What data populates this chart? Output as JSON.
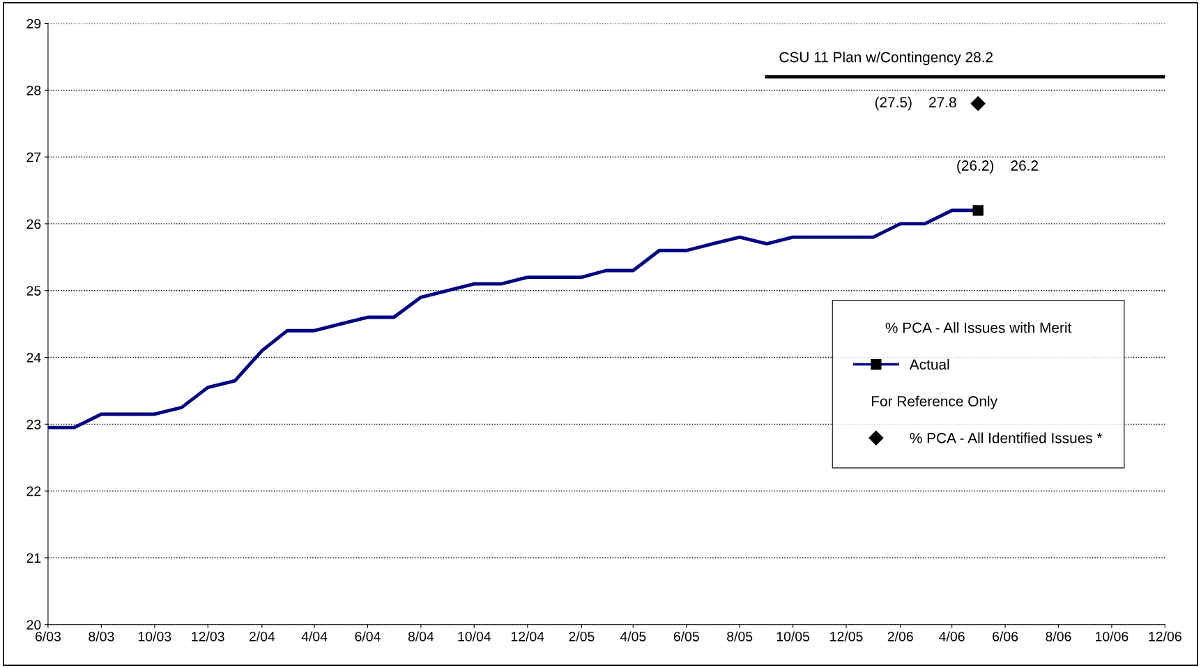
{
  "chart_data": {
    "type": "line",
    "x": [
      "2003-06",
      "2003-07",
      "2003-08",
      "2003-09",
      "2003-10",
      "2003-11",
      "2003-12",
      "2004-01",
      "2004-02",
      "2004-03",
      "2004-04",
      "2004-05",
      "2004-06",
      "2004-07",
      "2004-08",
      "2004-09",
      "2004-10",
      "2004-11",
      "2004-12",
      "2005-01",
      "2005-02",
      "2005-03",
      "2005-04",
      "2005-05",
      "2005-06",
      "2005-07",
      "2005-08",
      "2005-09",
      "2005-10",
      "2005-11",
      "2005-12",
      "2006-01",
      "2006-02",
      "2006-03",
      "2006-04",
      "2006-05"
    ],
    "series": [
      {
        "name": "Actual",
        "color": "#000080",
        "marker": "none",
        "values": [
          22.95,
          22.95,
          23.15,
          23.15,
          23.15,
          23.25,
          23.55,
          23.65,
          24.1,
          24.4,
          24.4,
          24.5,
          24.6,
          24.6,
          24.9,
          25.0,
          25.1,
          25.1,
          25.2,
          25.2,
          25.2,
          25.3,
          25.3,
          25.6,
          25.6,
          25.7,
          25.8,
          25.7,
          25.8,
          25.8,
          25.8,
          25.8,
          26.0,
          26.0,
          26.2,
          26.2
        ]
      },
      {
        "name": "% PCA - All Identified Issues *",
        "type": "scatter",
        "color": "#000000",
        "marker": "diamond",
        "x": [
          "2006-05"
        ],
        "values": [
          27.8
        ]
      },
      {
        "type": "scatter",
        "color": "#000000",
        "marker": "square",
        "x": [
          "2006-05"
        ],
        "values": [
          26.2
        ]
      },
      {
        "type": "line",
        "color": "#000000",
        "marker": "none",
        "x": [
          "2005-09",
          "2006-12"
        ],
        "values": [
          28.2,
          28.2
        ]
      }
    ],
    "legend_title": "% PCA - All Issues with Merit",
    "annotations": [
      {
        "text": "CSU 11 Plan w/Contingency 28.2",
        "x": "2006-03",
        "y": 28.2
      },
      {
        "text": "(27.5)    27.8",
        "x": "2006-05",
        "y": 27.8
      },
      {
        "text": "(26.2)    26.2",
        "x": "2006-05",
        "y": 26.2
      },
      "For Reference Only"
    ],
    "xlim": [
      "2003-06",
      "2006-12"
    ],
    "xticks": [
      {
        "value": "2003-06",
        "label": "6/03"
      },
      {
        "value": "2003-08",
        "label": "8/03"
      },
      {
        "value": "2003-10",
        "label": "10/03"
      },
      {
        "value": "2003-12",
        "label": "12/03"
      },
      {
        "value": "2004-02",
        "label": "2/04"
      },
      {
        "value": "2004-04",
        "label": "4/04"
      },
      {
        "value": "2004-06",
        "label": "6/04"
      },
      {
        "value": "2004-08",
        "label": "8/04"
      },
      {
        "value": "2004-10",
        "label": "10/04"
      },
      {
        "value": "2004-12",
        "label": "12/04"
      },
      {
        "value": "2005-02",
        "label": "2/05"
      },
      {
        "value": "2005-04",
        "label": "4/05"
      },
      {
        "value": "2005-06",
        "label": "6/05"
      },
      {
        "value": "2005-08",
        "label": "8/05"
      },
      {
        "value": "2005-10",
        "label": "10/05"
      },
      {
        "value": "2005-12",
        "label": "12/05"
      },
      {
        "value": "2006-02",
        "label": "2/06"
      },
      {
        "value": "2006-04",
        "label": "4/06"
      },
      {
        "value": "2006-06",
        "label": "6/06"
      },
      {
        "value": "2006-08",
        "label": "8/06"
      },
      {
        "value": "2006-10",
        "label": "10/06"
      },
      {
        "value": "2006-12",
        "label": "12/06"
      }
    ],
    "ylim": [
      20,
      29
    ],
    "yticks": [
      20,
      21,
      22,
      23,
      24,
      25,
      26,
      27,
      28,
      29
    ],
    "grid": "y",
    "legend": "right",
    "line_style": "solid"
  }
}
